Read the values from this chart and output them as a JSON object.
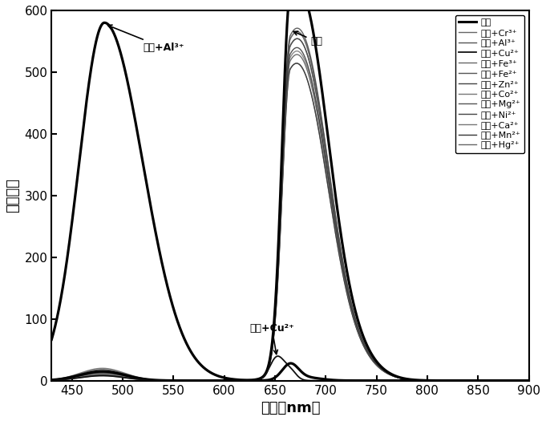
{
  "xlim": [
    430,
    900
  ],
  "ylim": [
    0,
    600
  ],
  "xticks": [
    450,
    500,
    550,
    600,
    650,
    700,
    750,
    800,
    850,
    900
  ],
  "yticks": [
    0,
    100,
    200,
    300,
    400,
    500,
    600
  ],
  "xlabel": "波长（nm）",
  "ylabel": "荧光强度",
  "legend_entries": [
    "碳点",
    "碳点+Cr³⁺",
    "碳点+Al³⁺",
    "碳点+Cu²⁺",
    "碳点+Fe³⁺",
    "碳点+Fe²⁺",
    "碳点+Zn²⁺",
    "碳点+Co²⁺",
    "碳点+Mg²⁺",
    "碳点+Ni²⁺",
    "碳点+Ca²⁺",
    "碳点+Mn²⁺",
    "碳点+Hg²⁺"
  ],
  "ann_al_text": "碳点+Al³⁺",
  "ann_cd_text": "碳点",
  "ann_cu_text": "碳点+Cu²⁺",
  "bg_color": "#ffffff"
}
